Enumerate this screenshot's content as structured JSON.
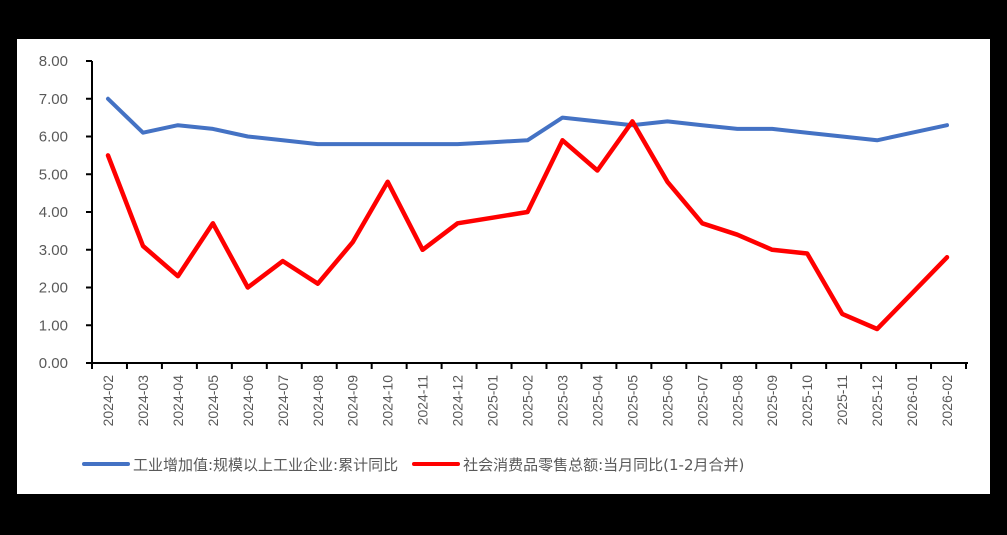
{
  "chart_data": {
    "type": "line",
    "title": "",
    "xlabel": "",
    "ylabel": "",
    "ylim": [
      0,
      8
    ],
    "yticks": [
      "0.00",
      "1.00",
      "2.00",
      "3.00",
      "4.00",
      "5.00",
      "6.00",
      "7.00",
      "8.00"
    ],
    "grid": false,
    "legend_position": "bottom",
    "categories": [
      "2024-02",
      "2024-03",
      "2024-04",
      "2024-05",
      "2024-06",
      "2024-07",
      "2024-08",
      "2024-09",
      "2024-10",
      "2024-11",
      "2024-12",
      "2025-01",
      "2025-02",
      "2025-03",
      "2025-04",
      "2025-05",
      "2025-06",
      "2025-07",
      "2025-08",
      "2025-09",
      "2025-10",
      "2025-11",
      "2025-12",
      "2026-01",
      "2026-02"
    ],
    "series": [
      {
        "name": "工业增加值:规模以上工业企业:累计同比",
        "color": "#4472C4",
        "values": [
          7.0,
          6.1,
          6.3,
          6.2,
          6.0,
          5.9,
          5.8,
          5.8,
          5.8,
          5.8,
          5.8,
          5.85,
          5.9,
          6.5,
          6.4,
          6.3,
          6.4,
          6.3,
          6.2,
          6.2,
          6.1,
          6.0,
          5.9,
          6.1,
          6.3
        ]
      },
      {
        "name": "社会消费品零售总额:当月同比(1-2月合并)",
        "color": "#FF0000",
        "values": [
          5.5,
          3.1,
          2.3,
          3.7,
          2.0,
          2.7,
          2.1,
          3.2,
          4.8,
          3.0,
          3.7,
          3.85,
          4.0,
          5.9,
          5.1,
          6.4,
          4.8,
          3.7,
          3.4,
          3.0,
          2.9,
          1.3,
          0.9,
          1.85,
          2.8
        ]
      }
    ]
  },
  "legend": {
    "items": [
      {
        "label": "工业增加值:规模以上工业企业:累计同比",
        "color": "#4472C4"
      },
      {
        "label": "社会消费品零售总额:当月同比(1-2月合并)",
        "color": "#FF0000"
      }
    ]
  }
}
